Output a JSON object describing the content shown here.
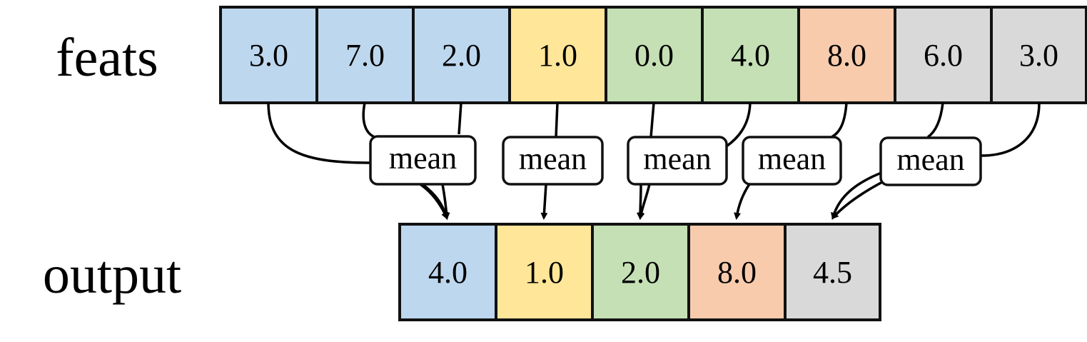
{
  "rows": {
    "feats": {
      "label": "feats",
      "cells": [
        {
          "value": "3.0",
          "group": 0
        },
        {
          "value": "7.0",
          "group": 0
        },
        {
          "value": "2.0",
          "group": 0
        },
        {
          "value": "1.0",
          "group": 1
        },
        {
          "value": "0.0",
          "group": 2
        },
        {
          "value": "4.0",
          "group": 2
        },
        {
          "value": "8.0",
          "group": 3
        },
        {
          "value": "6.0",
          "group": 4
        },
        {
          "value": "3.0",
          "group": 4
        }
      ]
    },
    "output": {
      "label": "output",
      "cells": [
        {
          "value": "4.0",
          "group": 0
        },
        {
          "value": "1.0",
          "group": 1
        },
        {
          "value": "2.0",
          "group": 2
        },
        {
          "value": "8.0",
          "group": 3
        },
        {
          "value": "4.5",
          "group": 4
        }
      ]
    }
  },
  "ops": [
    {
      "label": "mean"
    },
    {
      "label": "mean"
    },
    {
      "label": "mean"
    },
    {
      "label": "mean"
    },
    {
      "label": "mean"
    }
  ],
  "group_colors": [
    "#bdd7ee",
    "#ffe699",
    "#c5e0b4",
    "#f8cbad",
    "#d9d9d9"
  ]
}
